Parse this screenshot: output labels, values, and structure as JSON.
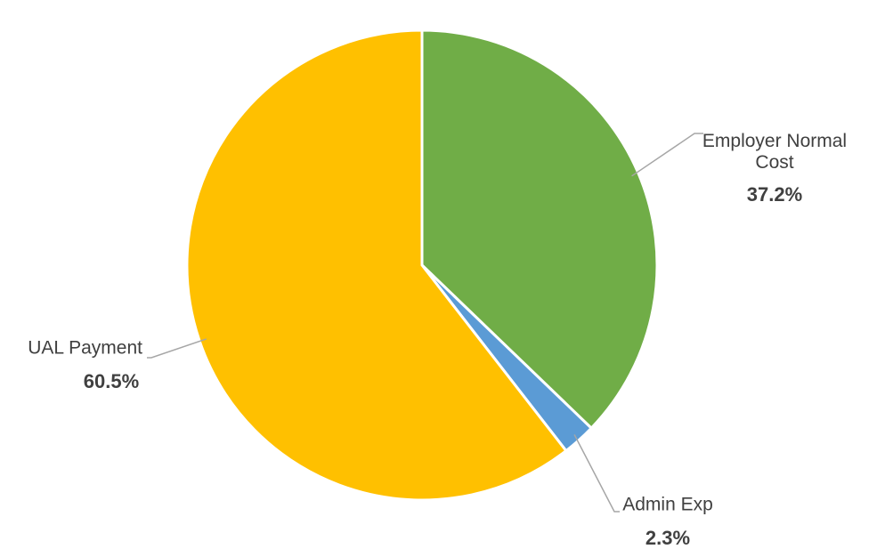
{
  "chart_data": {
    "type": "pie",
    "categories": [
      "Employer Normal Cost",
      "Admin Exp",
      "UAL Payment"
    ],
    "values": [
      37.2,
      2.3,
      60.5
    ],
    "value_labels": [
      "37.2%",
      "2.3%",
      "60.5%"
    ],
    "colors": [
      "#70ad47",
      "#5b9bd5",
      "#ffc000"
    ]
  }
}
